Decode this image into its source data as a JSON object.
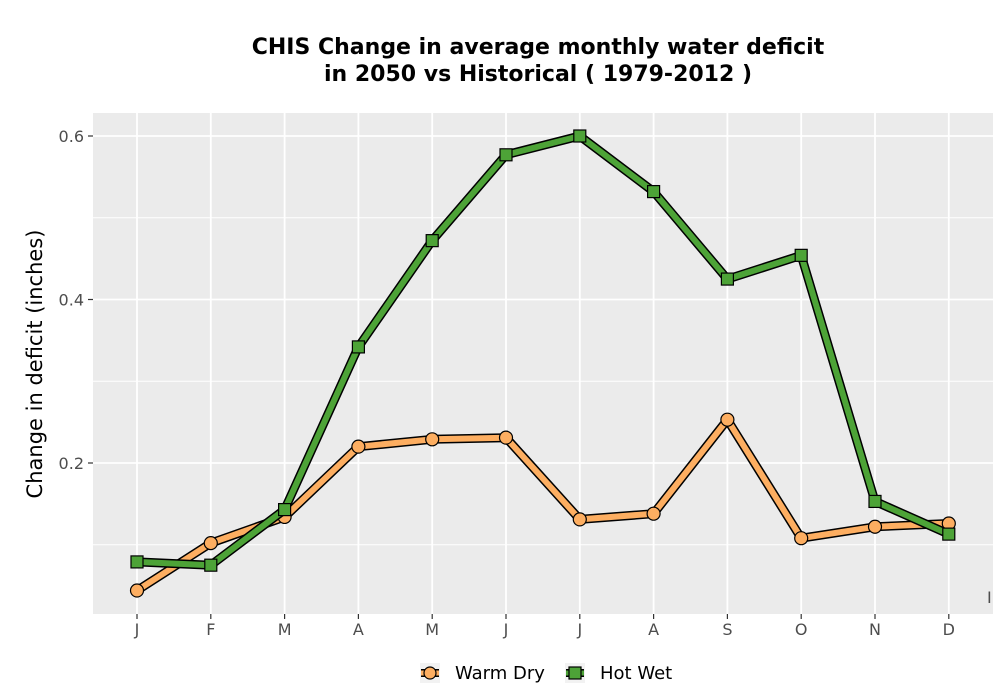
{
  "chart_data": {
    "type": "line",
    "title_lines": [
      "CHIS  Change in average monthly water deficit",
      "in 2050 vs Historical ( 1979-2012 )"
    ],
    "xlabel": "",
    "ylabel": "Change in deficit (inches)",
    "categories": [
      "J",
      "F",
      "M",
      "A",
      "M",
      "J",
      "J",
      "A",
      "S",
      "O",
      "N",
      "D"
    ],
    "y_ticks": [
      "0.2",
      "0.4",
      "0.6"
    ],
    "y_tick_values": [
      0.2,
      0.4,
      0.6
    ],
    "ylim": [
      0.015,
      0.62
    ],
    "grid": true,
    "legend_position": "bottom",
    "stray_label": "I",
    "series": [
      {
        "name": "Warm Dry",
        "marker": "circle",
        "color": "#FDAE61",
        "values": [
          0.044,
          0.102,
          0.134,
          0.22,
          0.229,
          0.231,
          0.131,
          0.138,
          0.253,
          0.108,
          0.122,
          0.126
        ]
      },
      {
        "name": "Hot Wet",
        "marker": "square",
        "color": "#4DA337",
        "values": [
          0.079,
          0.075,
          0.143,
          0.342,
          0.472,
          0.577,
          0.6,
          0.532,
          0.425,
          0.454,
          0.153,
          0.113
        ]
      }
    ]
  }
}
